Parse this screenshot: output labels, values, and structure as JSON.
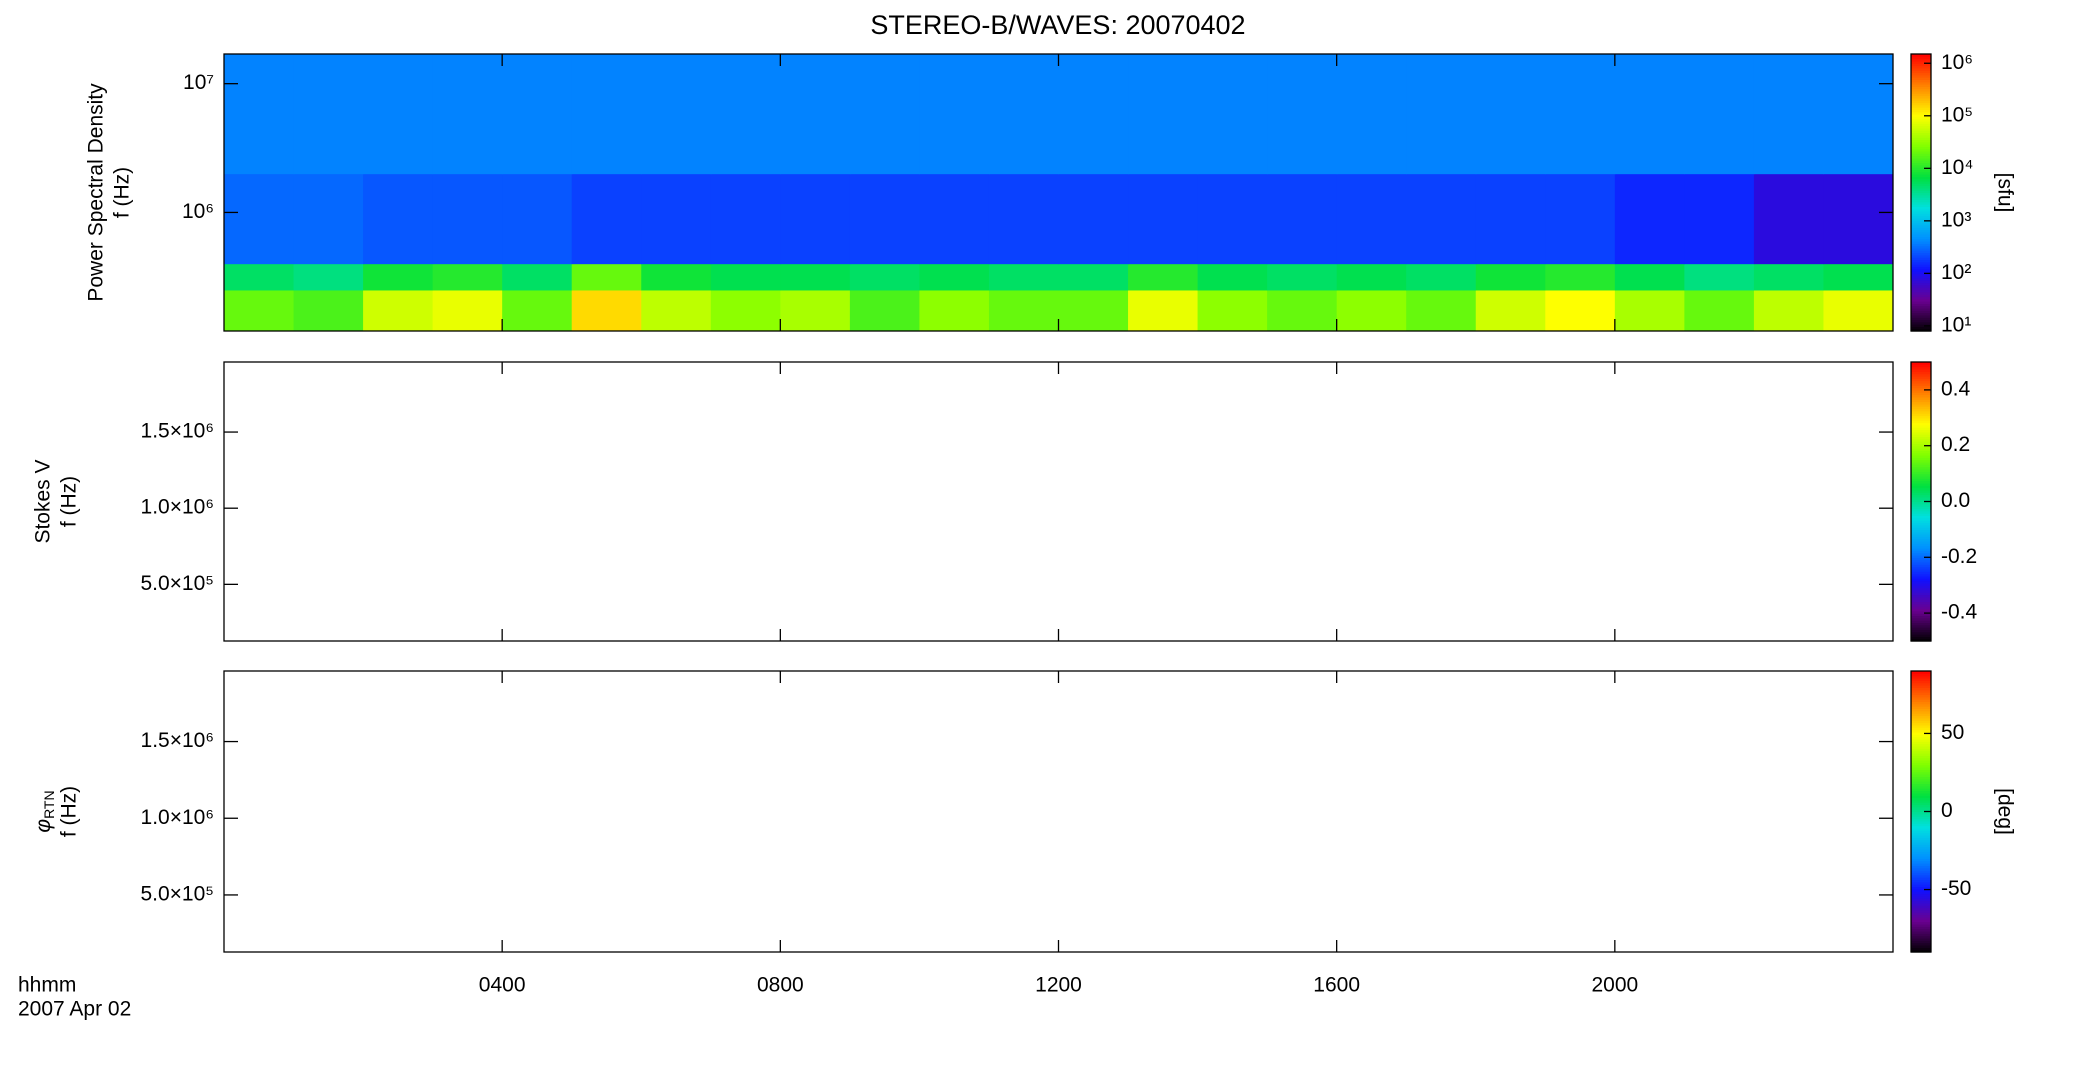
{
  "chart_data": [
    {
      "type": "heatmap",
      "title": "STEREO-B/WAVES: 20070402",
      "ylabel": [
        "Power Spectral Density",
        "f (Hz)"
      ],
      "xlim": [
        0,
        24
      ],
      "xticks": [
        4,
        8,
        12,
        16,
        20
      ],
      "ylog": true,
      "ylim": [
        120000,
        17000000
      ],
      "yticks": [
        {
          "value": 1000000,
          "label": "10⁶"
        },
        {
          "value": 10000000,
          "label": "10⁷"
        }
      ],
      "x_edges": [
        0,
        1,
        2,
        3,
        4,
        5,
        6,
        7,
        8,
        9,
        10,
        11,
        12,
        13,
        14,
        15,
        16,
        17,
        18,
        19,
        20,
        21,
        22,
        23,
        24
      ],
      "y_edges": [
        120000,
        250000,
        400000,
        2000000,
        17000000
      ],
      "z": [
        [
          20000,
          15000,
          60000,
          80000,
          20000,
          150000,
          50000,
          30000,
          40000,
          15000,
          30000,
          20000,
          20000,
          80000,
          30000,
          20000,
          30000,
          20000,
          60000,
          100000,
          40000,
          20000,
          50000,
          80000
        ],
        [
          5000,
          4000,
          8000,
          10000,
          5000,
          20000,
          8000,
          6000,
          6000,
          5000,
          6000,
          5000,
          5000,
          10000,
          6000,
          5000,
          6000,
          5000,
          8000,
          10000,
          6000,
          4000,
          5000,
          6000
        ],
        [
          300,
          300,
          250,
          250,
          250,
          200,
          200,
          200,
          200,
          200,
          200,
          200,
          200,
          200,
          200,
          200,
          200,
          200,
          200,
          200,
          150,
          150,
          80,
          80
        ],
        [
          400,
          400,
          400,
          400,
          400,
          400,
          400,
          400,
          400,
          400,
          400,
          400,
          400,
          400,
          400,
          400,
          400,
          400,
          400,
          400,
          400,
          400,
          400,
          400
        ]
      ],
      "colorbar": {
        "log": true,
        "clim": [
          8,
          1500000
        ],
        "label": "[sfu]",
        "ticks": [
          {
            "value": 10,
            "label": "10¹"
          },
          {
            "value": 100,
            "label": "10²"
          },
          {
            "value": 1000,
            "label": "10³"
          },
          {
            "value": 10000,
            "label": "10⁴"
          },
          {
            "value": 100000,
            "label": "10⁵"
          },
          {
            "value": 1000000,
            "label": "10⁶"
          }
        ]
      },
      "colormap": [
        "#000000",
        "#6a0090",
        "#1010ff",
        "#0090ff",
        "#00e0e0",
        "#00e040",
        "#80ff00",
        "#ffff00",
        "#ff8000",
        "#ff0000"
      ]
    },
    {
      "type": "heatmap",
      "ylabel": [
        "Stokes V",
        "f (Hz)"
      ],
      "xlim": [
        0,
        24
      ],
      "xticks": [
        4,
        8,
        12,
        16,
        20
      ],
      "ylog": false,
      "ylim": [
        128000,
        1960000
      ],
      "yticks": [
        {
          "value": 500000,
          "label": "5.0×10⁵"
        },
        {
          "value": 1000000,
          "label": "1.0×10⁶"
        },
        {
          "value": 1500000,
          "label": "1.5×10⁶"
        }
      ],
      "colorbar": {
        "log": false,
        "clim": [
          -0.5,
          0.5
        ],
        "ticks": [
          -0.4,
          -0.2,
          {
            "value": 0,
            "label": "0.0"
          },
          0.2,
          0.4
        ]
      },
      "colormap": [
        "#000000",
        "#6a0090",
        "#1010ff",
        "#0090ff",
        "#00e0e0",
        "#00e040",
        "#80ff00",
        "#ffff00",
        "#ff8000",
        "#ff0000"
      ]
    },
    {
      "type": "heatmap",
      "ylabel_symbol": "φ",
      "ylabel_subscript": "RTN",
      "ylabel": [
        "f (Hz)"
      ],
      "xlim": [
        0,
        24
      ],
      "xticks": [
        {
          "value": 4,
          "label": "0400"
        },
        {
          "value": 8,
          "label": "0800"
        },
        {
          "value": 12,
          "label": "1200"
        },
        {
          "value": 16,
          "label": "1600"
        },
        {
          "value": 20,
          "label": "2000"
        }
      ],
      "xlabel": [
        "hhmm",
        "2007 Apr 02"
      ],
      "ylog": false,
      "ylim": [
        128000,
        1960000
      ],
      "yticks": [
        {
          "value": 500000,
          "label": "5.0×10⁵"
        },
        {
          "value": 1000000,
          "label": "1.0×10⁶"
        },
        {
          "value": 1500000,
          "label": "1.5×10⁶"
        }
      ],
      "colorbar": {
        "log": false,
        "clim": [
          -90,
          90
        ],
        "label": "[deg]",
        "ticks": [
          -50,
          0,
          50
        ]
      },
      "colormap": [
        "#000000",
        "#6a0090",
        "#1010ff",
        "#0090ff",
        "#00e0e0",
        "#00e040",
        "#80ff00",
        "#ffff00",
        "#ff8000",
        "#ff0000"
      ]
    }
  ]
}
